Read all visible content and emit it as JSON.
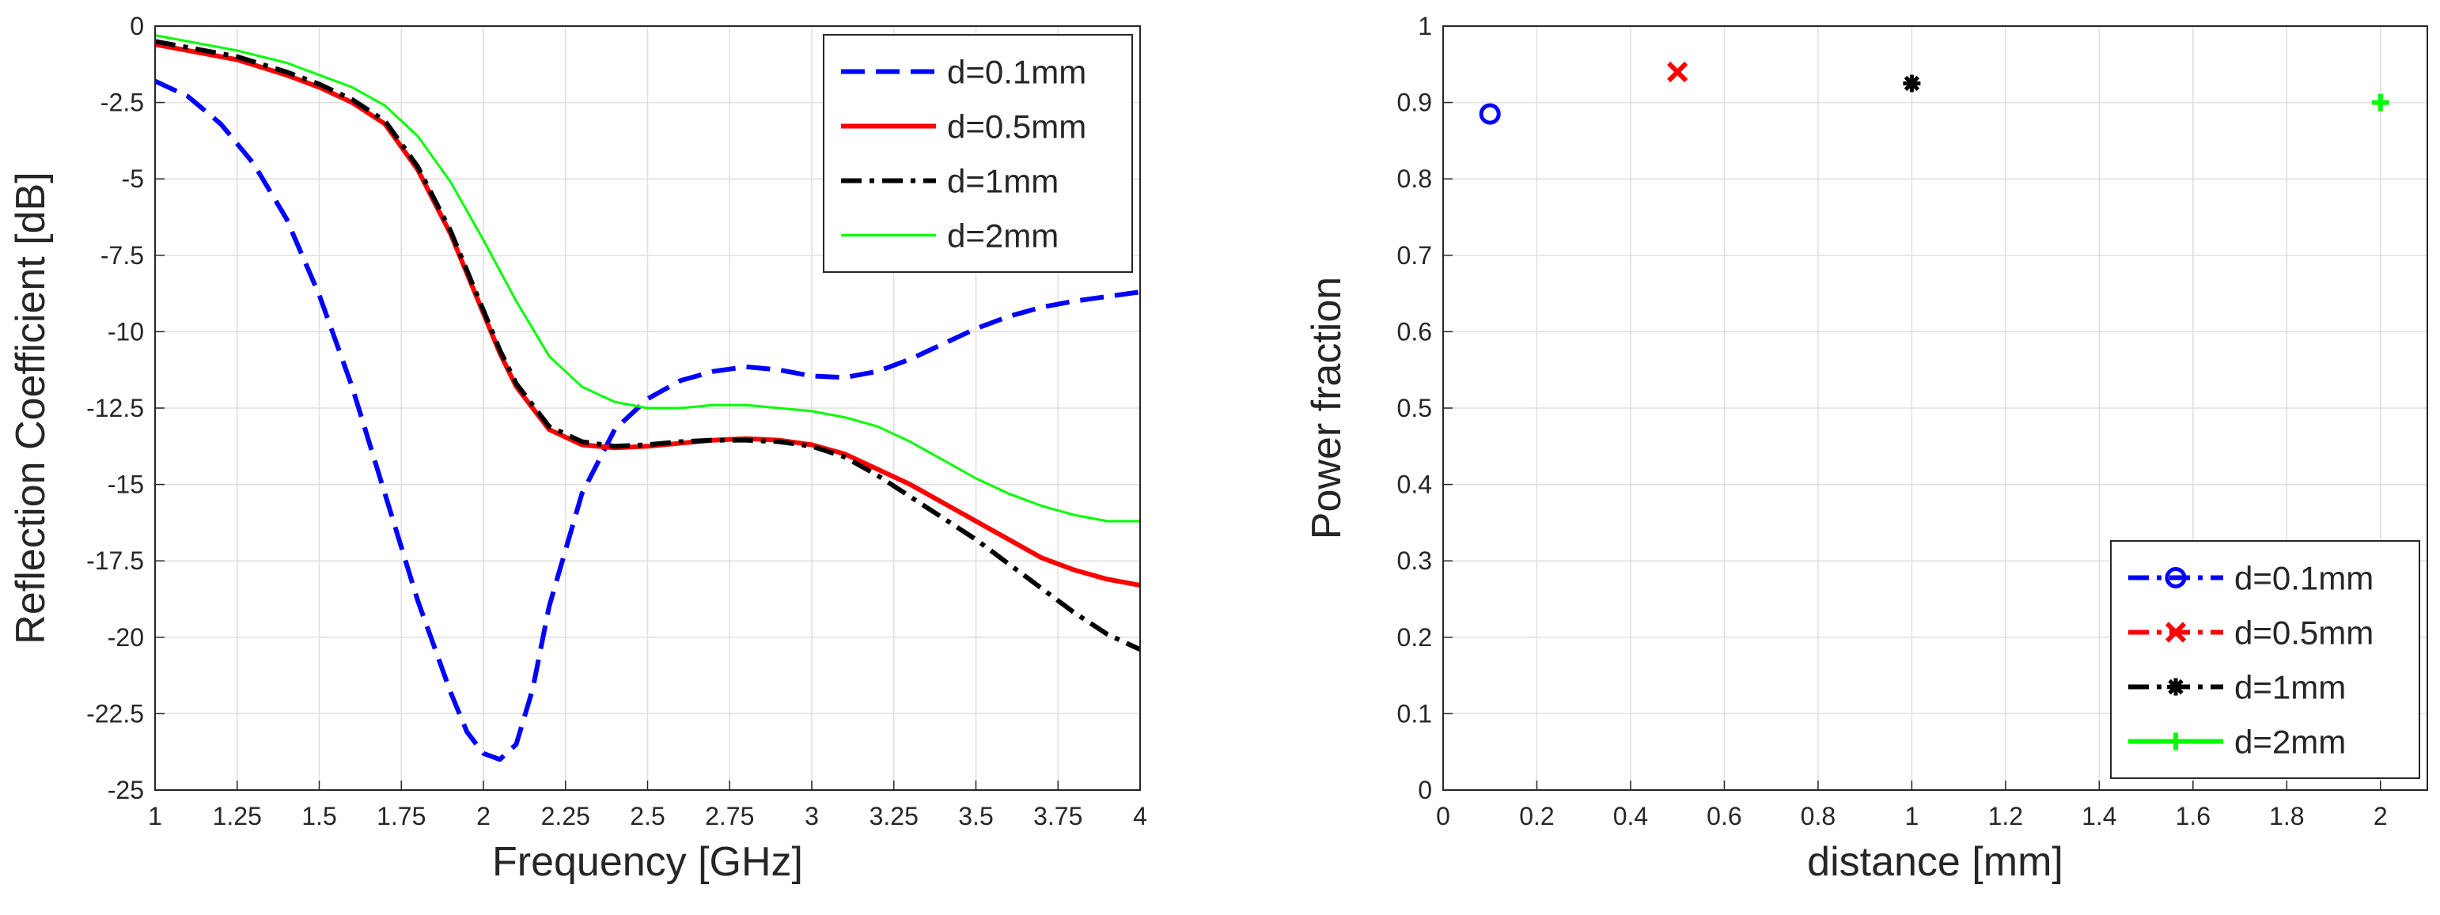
{
  "chart_data": [
    {
      "type": "line",
      "xlabel": "Frequency [GHz]",
      "ylabel": "Reflection Coefficient [dB]",
      "xlim": [
        1,
        4
      ],
      "ylim": [
        -25,
        0
      ],
      "xticks": [
        1,
        1.25,
        1.5,
        1.75,
        2,
        2.25,
        2.5,
        2.75,
        3,
        3.25,
        3.5,
        3.75,
        4
      ],
      "xtick_labels": [
        "1",
        "1.25",
        "1.5",
        "1.75",
        "2",
        "2.25",
        "2.5",
        "2.75",
        "3",
        "3.25",
        "3.5",
        "3.75",
        "4"
      ],
      "yticks": [
        0,
        -2.5,
        -5,
        -7.5,
        -10,
        -12.5,
        -15,
        -17.5,
        -20,
        -22.5,
        -25
      ],
      "ytick_labels": [
        "0",
        "-2.5",
        "-5",
        "-7.5",
        "-10",
        "-12.5",
        "-15",
        "-17.5",
        "-20",
        "-22.5",
        "-25"
      ],
      "grid": true,
      "legend_position": "top-right",
      "series": [
        {
          "name": "d=0.1mm",
          "color": "#0000FF",
          "style": "dashed",
          "x": [
            1.0,
            1.1,
            1.2,
            1.3,
            1.4,
            1.5,
            1.6,
            1.7,
            1.8,
            1.9,
            1.95,
            2.0,
            2.05,
            2.1,
            2.15,
            2.2,
            2.3,
            2.4,
            2.5,
            2.6,
            2.7,
            2.8,
            2.9,
            3.0,
            3.1,
            3.2,
            3.3,
            3.4,
            3.5,
            3.6,
            3.7,
            3.8,
            3.9,
            4.0
          ],
          "y": [
            -1.8,
            -2.3,
            -3.2,
            -4.5,
            -6.3,
            -8.8,
            -11.8,
            -15.3,
            -18.8,
            -21.8,
            -23.1,
            -23.8,
            -24.0,
            -23.5,
            -21.7,
            -19.0,
            -15.3,
            -13.2,
            -12.2,
            -11.6,
            -11.3,
            -11.15,
            -11.25,
            -11.45,
            -11.5,
            -11.3,
            -10.9,
            -10.4,
            -9.9,
            -9.5,
            -9.2,
            -9.0,
            -8.85,
            -8.7
          ]
        },
        {
          "name": "d=0.5mm",
          "color": "#FF0000",
          "style": "solid",
          "x": [
            1.0,
            1.1,
            1.25,
            1.4,
            1.5,
            1.6,
            1.7,
            1.8,
            1.9,
            2.0,
            2.05,
            2.1,
            2.2,
            2.3,
            2.4,
            2.5,
            2.6,
            2.7,
            2.8,
            2.9,
            3.0,
            3.1,
            3.2,
            3.3,
            3.4,
            3.5,
            3.6,
            3.7,
            3.8,
            3.9,
            4.0
          ],
          "y": [
            -0.6,
            -0.8,
            -1.1,
            -1.6,
            -2.0,
            -2.5,
            -3.2,
            -4.7,
            -6.8,
            -9.4,
            -10.7,
            -11.8,
            -13.2,
            -13.7,
            -13.8,
            -13.75,
            -13.65,
            -13.55,
            -13.5,
            -13.55,
            -13.7,
            -14.0,
            -14.5,
            -15.0,
            -15.6,
            -16.2,
            -16.8,
            -17.4,
            -17.8,
            -18.1,
            -18.3
          ]
        },
        {
          "name": "d=1mm",
          "color": "#000000",
          "style": "dashdot",
          "x": [
            1.0,
            1.1,
            1.25,
            1.4,
            1.5,
            1.6,
            1.7,
            1.8,
            1.9,
            2.0,
            2.05,
            2.1,
            2.2,
            2.3,
            2.4,
            2.5,
            2.6,
            2.7,
            2.8,
            2.9,
            3.0,
            3.1,
            3.2,
            3.3,
            3.4,
            3.5,
            3.6,
            3.7,
            3.8,
            3.9,
            4.0
          ],
          "y": [
            -0.5,
            -0.7,
            -1.0,
            -1.5,
            -1.9,
            -2.4,
            -3.1,
            -4.6,
            -6.7,
            -9.3,
            -10.6,
            -11.7,
            -13.1,
            -13.6,
            -13.75,
            -13.7,
            -13.6,
            -13.55,
            -13.55,
            -13.6,
            -13.75,
            -14.1,
            -14.7,
            -15.4,
            -16.1,
            -16.8,
            -17.6,
            -18.4,
            -19.2,
            -19.9,
            -20.4
          ]
        },
        {
          "name": "d=2mm",
          "color": "#00FF00",
          "style": "solid-thin",
          "x": [
            1.0,
            1.1,
            1.25,
            1.4,
            1.5,
            1.6,
            1.7,
            1.8,
            1.9,
            2.0,
            2.1,
            2.2,
            2.3,
            2.4,
            2.5,
            2.6,
            2.7,
            2.8,
            2.9,
            3.0,
            3.1,
            3.2,
            3.3,
            3.4,
            3.5,
            3.6,
            3.7,
            3.8,
            3.9,
            4.0
          ],
          "y": [
            -0.3,
            -0.5,
            -0.8,
            -1.2,
            -1.6,
            -2.0,
            -2.6,
            -3.6,
            -5.1,
            -7.0,
            -9.0,
            -10.8,
            -11.8,
            -12.3,
            -12.5,
            -12.5,
            -12.4,
            -12.4,
            -12.5,
            -12.6,
            -12.8,
            -13.1,
            -13.6,
            -14.2,
            -14.8,
            -15.3,
            -15.7,
            -16.0,
            -16.2,
            -16.2
          ]
        }
      ]
    },
    {
      "type": "scatter",
      "xlabel": "distance [mm]",
      "ylabel": "Power fraction",
      "xlim": [
        0,
        2.1
      ],
      "ylim": [
        0,
        1
      ],
      "xticks": [
        0,
        0.2,
        0.4,
        0.6,
        0.8,
        1,
        1.2,
        1.4,
        1.6,
        1.8,
        2
      ],
      "xtick_labels": [
        "0",
        "0.2",
        "0.4",
        "0.6",
        "0.8",
        "1",
        "1.2",
        "1.4",
        "1.6",
        "1.8",
        "2"
      ],
      "yticks": [
        0,
        0.1,
        0.2,
        0.3,
        0.4,
        0.5,
        0.6,
        0.7,
        0.8,
        0.9,
        1
      ],
      "ytick_labels": [
        "0",
        "0.1",
        "0.2",
        "0.3",
        "0.4",
        "0.5",
        "0.6",
        "0.7",
        "0.8",
        "0.9",
        "1"
      ],
      "grid": true,
      "legend_position": "bottom-right",
      "series": [
        {
          "name": "d=0.1mm",
          "color": "#0000FF",
          "marker": "circle",
          "style": "dashdot",
          "x": [
            0.1
          ],
          "y": [
            0.885
          ]
        },
        {
          "name": "d=0.5mm",
          "color": "#FF0000",
          "marker": "x",
          "style": "dashdot",
          "x": [
            0.5
          ],
          "y": [
            0.94
          ]
        },
        {
          "name": "d=1mm",
          "color": "#000000",
          "marker": "asterisk",
          "style": "dashdot",
          "x": [
            1.0
          ],
          "y": [
            0.925
          ]
        },
        {
          "name": "d=2mm",
          "color": "#00FF00",
          "marker": "plus",
          "style": "solid",
          "x": [
            2.0
          ],
          "y": [
            0.9
          ]
        }
      ]
    }
  ]
}
